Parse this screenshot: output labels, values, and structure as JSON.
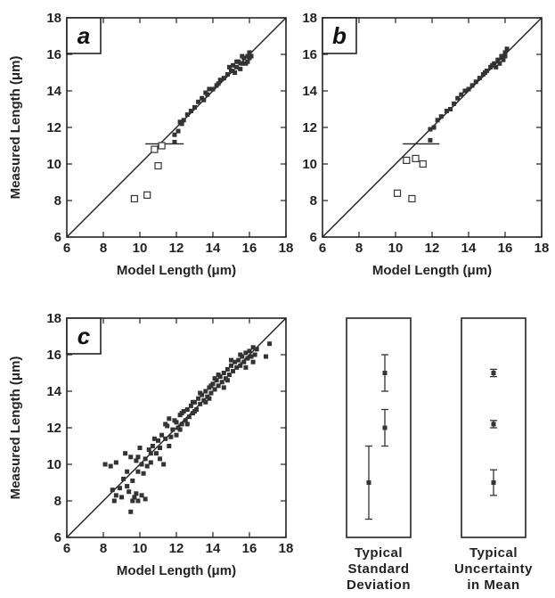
{
  "chart_data": [
    {
      "type": "scatter",
      "panel": "a",
      "xlabel": "Model Length (μm)",
      "ylabel": "Measured Length (μm)",
      "xlim": [
        6,
        18
      ],
      "ylim": [
        6,
        18
      ],
      "xticks": [
        "6",
        "8",
        "10",
        "12",
        "14",
        "16",
        "18"
      ],
      "yticks": [
        "6",
        "8",
        "10",
        "12",
        "14",
        "16",
        "18"
      ],
      "reference_line": "y = x",
      "hline": {
        "y": 11.1,
        "x": [
          10.3,
          12.4
        ]
      },
      "filled_points": [
        [
          11.9,
          11.6
        ],
        [
          12.1,
          11.8
        ],
        [
          12.3,
          12.2
        ],
        [
          12.4,
          12.4
        ],
        [
          12.6,
          12.7
        ],
        [
          12.8,
          12.9
        ],
        [
          13.0,
          13.1
        ],
        [
          13.2,
          13.4
        ],
        [
          13.4,
          13.6
        ],
        [
          13.6,
          13.9
        ],
        [
          13.7,
          13.8
        ],
        [
          13.8,
          14.1
        ],
        [
          14.0,
          14.1
        ],
        [
          14.2,
          14.3
        ],
        [
          14.4,
          14.6
        ],
        [
          14.6,
          14.7
        ],
        [
          14.8,
          14.9
        ],
        [
          15.0,
          15.1
        ],
        [
          15.1,
          15.4
        ],
        [
          15.2,
          15.0
        ],
        [
          15.3,
          15.3
        ],
        [
          15.4,
          15.6
        ],
        [
          15.5,
          15.2
        ],
        [
          15.6,
          15.5
        ],
        [
          15.7,
          15.8
        ],
        [
          15.8,
          15.5
        ],
        [
          15.9,
          15.9
        ],
        [
          16.0,
          16.1
        ],
        [
          16.1,
          15.9
        ],
        [
          15.6,
          15.9
        ],
        [
          15.9,
          15.6
        ],
        [
          16.0,
          15.8
        ],
        [
          15.3,
          15.6
        ],
        [
          14.9,
          15.3
        ],
        [
          14.3,
          14.4
        ],
        [
          13.5,
          13.5
        ],
        [
          12.2,
          12.3
        ],
        [
          11.9,
          11.2
        ]
      ],
      "open_points": [
        [
          9.7,
          8.1
        ],
        [
          10.4,
          8.3
        ],
        [
          11.0,
          9.9
        ],
        [
          10.8,
          10.8
        ],
        [
          11.2,
          11.0
        ]
      ]
    },
    {
      "type": "scatter",
      "panel": "b",
      "xlabel": "Model Length (μm)",
      "ylabel": "",
      "xlim": [
        6,
        18
      ],
      "ylim": [
        6,
        18
      ],
      "xticks": [
        "6",
        "8",
        "10",
        "12",
        "14",
        "16",
        "18"
      ],
      "yticks": [
        "6",
        "8",
        "10",
        "12",
        "14",
        "16",
        "18"
      ],
      "reference_line": "y = x",
      "hline": {
        "y": 11.1,
        "x": [
          10.4,
          12.4
        ]
      },
      "filled_points": [
        [
          11.9,
          11.9
        ],
        [
          12.1,
          12.0
        ],
        [
          12.3,
          12.4
        ],
        [
          12.5,
          12.6
        ],
        [
          12.8,
          12.9
        ],
        [
          13.0,
          13.0
        ],
        [
          13.2,
          13.3
        ],
        [
          13.4,
          13.6
        ],
        [
          13.6,
          13.8
        ],
        [
          13.8,
          14.0
        ],
        [
          14.0,
          14.1
        ],
        [
          14.2,
          14.3
        ],
        [
          14.4,
          14.5
        ],
        [
          14.6,
          14.7
        ],
        [
          14.8,
          14.9
        ],
        [
          15.0,
          15.1
        ],
        [
          15.2,
          15.3
        ],
        [
          15.4,
          15.5
        ],
        [
          15.5,
          15.3
        ],
        [
          15.6,
          15.7
        ],
        [
          15.8,
          15.9
        ],
        [
          15.9,
          15.7
        ],
        [
          16.0,
          16.1
        ],
        [
          16.1,
          16.3
        ],
        [
          15.7,
          15.5
        ],
        [
          15.3,
          15.4
        ],
        [
          14.9,
          15.0
        ],
        [
          16.0,
          15.9
        ],
        [
          11.9,
          11.3
        ]
      ],
      "open_points": [
        [
          10.1,
          8.4
        ],
        [
          10.9,
          8.1
        ],
        [
          10.6,
          10.2
        ],
        [
          11.1,
          10.3
        ],
        [
          11.5,
          10.0
        ]
      ]
    },
    {
      "type": "scatter",
      "panel": "c",
      "xlabel": "Model Length (μm)",
      "ylabel": "Measured Length (μm)",
      "xlim": [
        6,
        18
      ],
      "ylim": [
        6,
        18
      ],
      "xticks": [
        "6",
        "8",
        "10",
        "12",
        "14",
        "16",
        "18"
      ],
      "yticks": [
        "6",
        "8",
        "10",
        "12",
        "14",
        "16",
        "18"
      ],
      "reference_line": "y = x",
      "filled_points": [
        [
          8.1,
          10.0
        ],
        [
          8.4,
          9.9
        ],
        [
          8.7,
          10.1
        ],
        [
          8.5,
          8.6
        ],
        [
          8.7,
          8.3
        ],
        [
          8.9,
          8.7
        ],
        [
          8.6,
          8.0
        ],
        [
          9.0,
          8.2
        ],
        [
          9.1,
          9.2
        ],
        [
          9.3,
          9.6
        ],
        [
          9.4,
          8.5
        ],
        [
          9.5,
          7.4
        ],
        [
          9.6,
          8.0
        ],
        [
          9.7,
          8.2
        ],
        [
          9.8,
          8.4
        ],
        [
          9.9,
          8.0
        ],
        [
          10.1,
          8.3
        ],
        [
          10.3,
          8.1
        ],
        [
          9.2,
          10.6
        ],
        [
          9.5,
          10.4
        ],
        [
          9.8,
          10.2
        ],
        [
          9.9,
          9.6
        ],
        [
          10.1,
          10.0
        ],
        [
          10.2,
          9.5
        ],
        [
          10.3,
          10.3
        ],
        [
          10.5,
          10.8
        ],
        [
          10.6,
          10.1
        ],
        [
          10.7,
          11.0
        ],
        [
          10.9,
          10.6
        ],
        [
          11.0,
          11.3
        ],
        [
          11.1,
          10.9
        ],
        [
          11.2,
          11.6
        ],
        [
          11.3,
          10.0
        ],
        [
          11.4,
          11.4
        ],
        [
          11.5,
          12.1
        ],
        [
          11.6,
          11.0
        ],
        [
          11.8,
          11.9
        ],
        [
          11.9,
          12.4
        ],
        [
          12.0,
          11.6
        ],
        [
          12.1,
          12.0
        ],
        [
          12.2,
          12.7
        ],
        [
          12.3,
          12.2
        ],
        [
          12.4,
          12.9
        ],
        [
          12.5,
          12.4
        ],
        [
          12.6,
          13.0
        ],
        [
          12.7,
          12.6
        ],
        [
          12.8,
          13.2
        ],
        [
          12.9,
          12.8
        ],
        [
          13.0,
          13.4
        ],
        [
          13.1,
          13.0
        ],
        [
          13.2,
          13.6
        ],
        [
          13.3,
          13.3
        ],
        [
          13.4,
          13.8
        ],
        [
          13.5,
          13.5
        ],
        [
          13.6,
          14.0
        ],
        [
          13.7,
          13.7
        ],
        [
          13.8,
          14.2
        ],
        [
          13.9,
          13.9
        ],
        [
          14.0,
          14.4
        ],
        [
          14.1,
          14.1
        ],
        [
          14.2,
          14.6
        ],
        [
          14.3,
          14.3
        ],
        [
          14.4,
          14.8
        ],
        [
          14.5,
          14.5
        ],
        [
          14.6,
          15.0
        ],
        [
          14.7,
          14.7
        ],
        [
          14.8,
          15.2
        ],
        [
          14.9,
          14.9
        ],
        [
          15.0,
          15.4
        ],
        [
          15.1,
          15.1
        ],
        [
          15.2,
          15.6
        ],
        [
          15.3,
          15.3
        ],
        [
          15.4,
          15.7
        ],
        [
          15.5,
          15.4
        ],
        [
          15.6,
          15.9
        ],
        [
          15.7,
          15.6
        ],
        [
          15.8,
          16.1
        ],
        [
          15.9,
          15.8
        ],
        [
          16.0,
          16.2
        ],
        [
          16.1,
          15.9
        ],
        [
          16.2,
          16.4
        ],
        [
          16.3,
          16.0
        ],
        [
          16.4,
          16.3
        ],
        [
          17.1,
          16.6
        ],
        [
          16.9,
          15.9
        ],
        [
          16.2,
          15.6
        ],
        [
          15.0,
          15.7
        ],
        [
          14.6,
          14.2
        ],
        [
          14.3,
          14.9
        ],
        [
          13.9,
          14.3
        ],
        [
          13.6,
          13.4
        ],
        [
          13.3,
          13.9
        ],
        [
          12.9,
          13.4
        ],
        [
          12.6,
          12.2
        ],
        [
          12.3,
          12.8
        ],
        [
          12.0,
          12.3
        ],
        [
          11.7,
          11.5
        ],
        [
          11.4,
          12.2
        ],
        [
          11.1,
          10.3
        ],
        [
          10.8,
          11.4
        ],
        [
          10.4,
          9.9
        ],
        [
          10.0,
          10.9
        ],
        [
          9.6,
          9.1
        ],
        [
          9.3,
          8.8
        ],
        [
          15.5,
          16.0
        ],
        [
          15.8,
          15.3
        ],
        [
          14.8,
          14.6
        ],
        [
          14.1,
          14.7
        ],
        [
          13.8,
          13.6
        ],
        [
          13.0,
          12.9
        ],
        [
          12.2,
          11.9
        ],
        [
          11.6,
          12.5
        ],
        [
          10.6,
          10.6
        ],
        [
          9.9,
          10.4
        ]
      ]
    },
    {
      "type": "errorbar",
      "panel": "typical-std",
      "caption": [
        "Typical",
        "Standard",
        "Deviation"
      ],
      "ylim": [
        6,
        18
      ],
      "points": [
        {
          "y": 15,
          "lo": 14,
          "hi": 16
        },
        {
          "y": 12,
          "lo": 11,
          "hi": 13
        },
        {
          "y": 9,
          "lo": 7,
          "hi": 11
        }
      ]
    },
    {
      "type": "errorbar",
      "panel": "typical-uncertainty",
      "caption": [
        "Typical",
        "Uncertainty",
        "in Mean"
      ],
      "ylim": [
        6,
        18
      ],
      "points": [
        {
          "y": 15,
          "lo": 14.8,
          "hi": 15.2
        },
        {
          "y": 12.2,
          "lo": 12.0,
          "hi": 12.4
        },
        {
          "y": 9,
          "lo": 8.3,
          "hi": 9.7
        }
      ]
    }
  ]
}
